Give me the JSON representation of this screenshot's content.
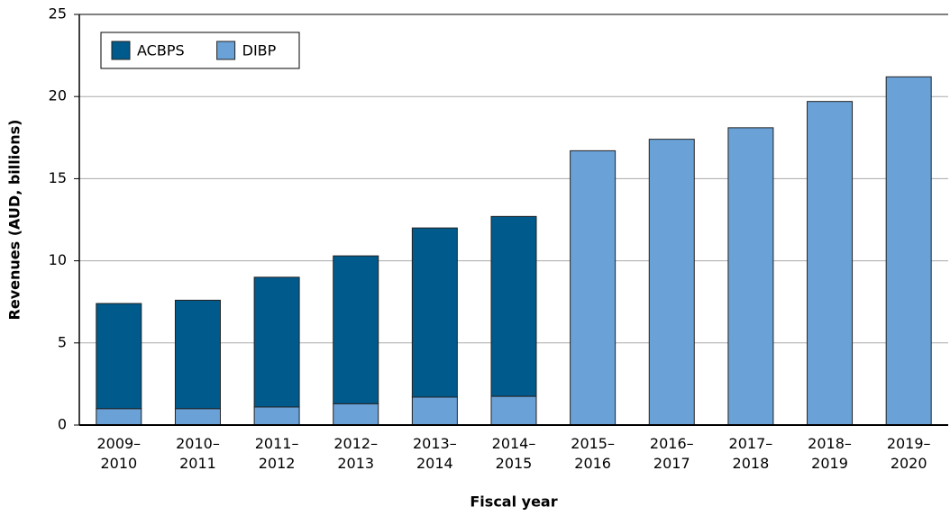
{
  "chart_data": {
    "type": "stacked_bar",
    "categories": [
      "2009–2010",
      "2010–2011",
      "2011–2012",
      "2012–2013",
      "2013–2014",
      "2014–2015",
      "2015–2016",
      "2016–2017",
      "2017–2018",
      "2018–2019",
      "2019–2020"
    ],
    "series": [
      {
        "name": "DIBP",
        "color": "#6aa2d8",
        "values": [
          1.0,
          1.0,
          1.1,
          1.3,
          1.7,
          1.75,
          16.7,
          17.4,
          18.1,
          19.7,
          21.2
        ]
      },
      {
        "name": "ACBPS",
        "color": "#005a8c",
        "values": [
          6.4,
          6.6,
          7.9,
          9.0,
          10.3,
          10.95,
          null,
          null,
          null,
          null,
          null
        ]
      }
    ],
    "legend_order": [
      1,
      0
    ],
    "xlabel": "Fiscal year",
    "ylabel": "Revenues (AUD, billions)",
    "ylim": [
      0,
      25
    ],
    "yticks": [
      0,
      5,
      10,
      15,
      20,
      25
    ],
    "grid": true,
    "legend": "upper left"
  }
}
